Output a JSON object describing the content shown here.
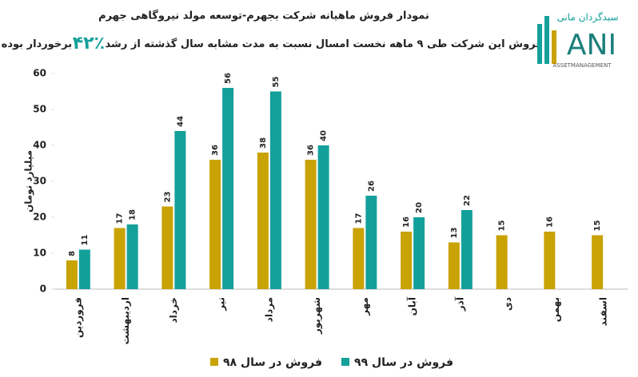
{
  "chart_data": {
    "type": "bar",
    "title": "نمودار فروش ماهیانه شرکت بجهرم-توسعه مولد نیروگاهی جهرم",
    "subtitle": [
      "فروش این شرکت طی ۹ ماهه نخست امسال نسبت به مدت مشابه سال گذشته از رشد",
      "٪۴۲",
      "برخوردار بوده است."
    ],
    "ylabel": "میلیارد تومان",
    "categories": [
      "فروردین",
      "اردیبهشت",
      "خرداد",
      "تیر",
      "مرداد",
      "شهریور",
      "مهر",
      "آبان",
      "آذر",
      "دی",
      "بهمن",
      "اسفند"
    ],
    "series": [
      {
        "name": "فروش در سال ۹۸",
        "color": "#c9a204",
        "values": [
          8,
          17,
          23,
          36,
          38,
          36,
          17,
          16,
          13,
          15,
          16,
          15
        ]
      },
      {
        "name": "فروش در سال ۹۹",
        "color": "#14a09a",
        "values": [
          11,
          18,
          44,
          56,
          55,
          40,
          26,
          20,
          22,
          null,
          null,
          null
        ]
      }
    ],
    "ylim": [
      0,
      60
    ],
    "yticks": [
      0,
      10,
      20,
      30,
      40,
      50,
      60
    ],
    "grid": false,
    "logo": {
      "name": "سبدگردان مانی",
      "mark": "ANI",
      "tagline": "ASSETMANAGEMENT"
    }
  }
}
